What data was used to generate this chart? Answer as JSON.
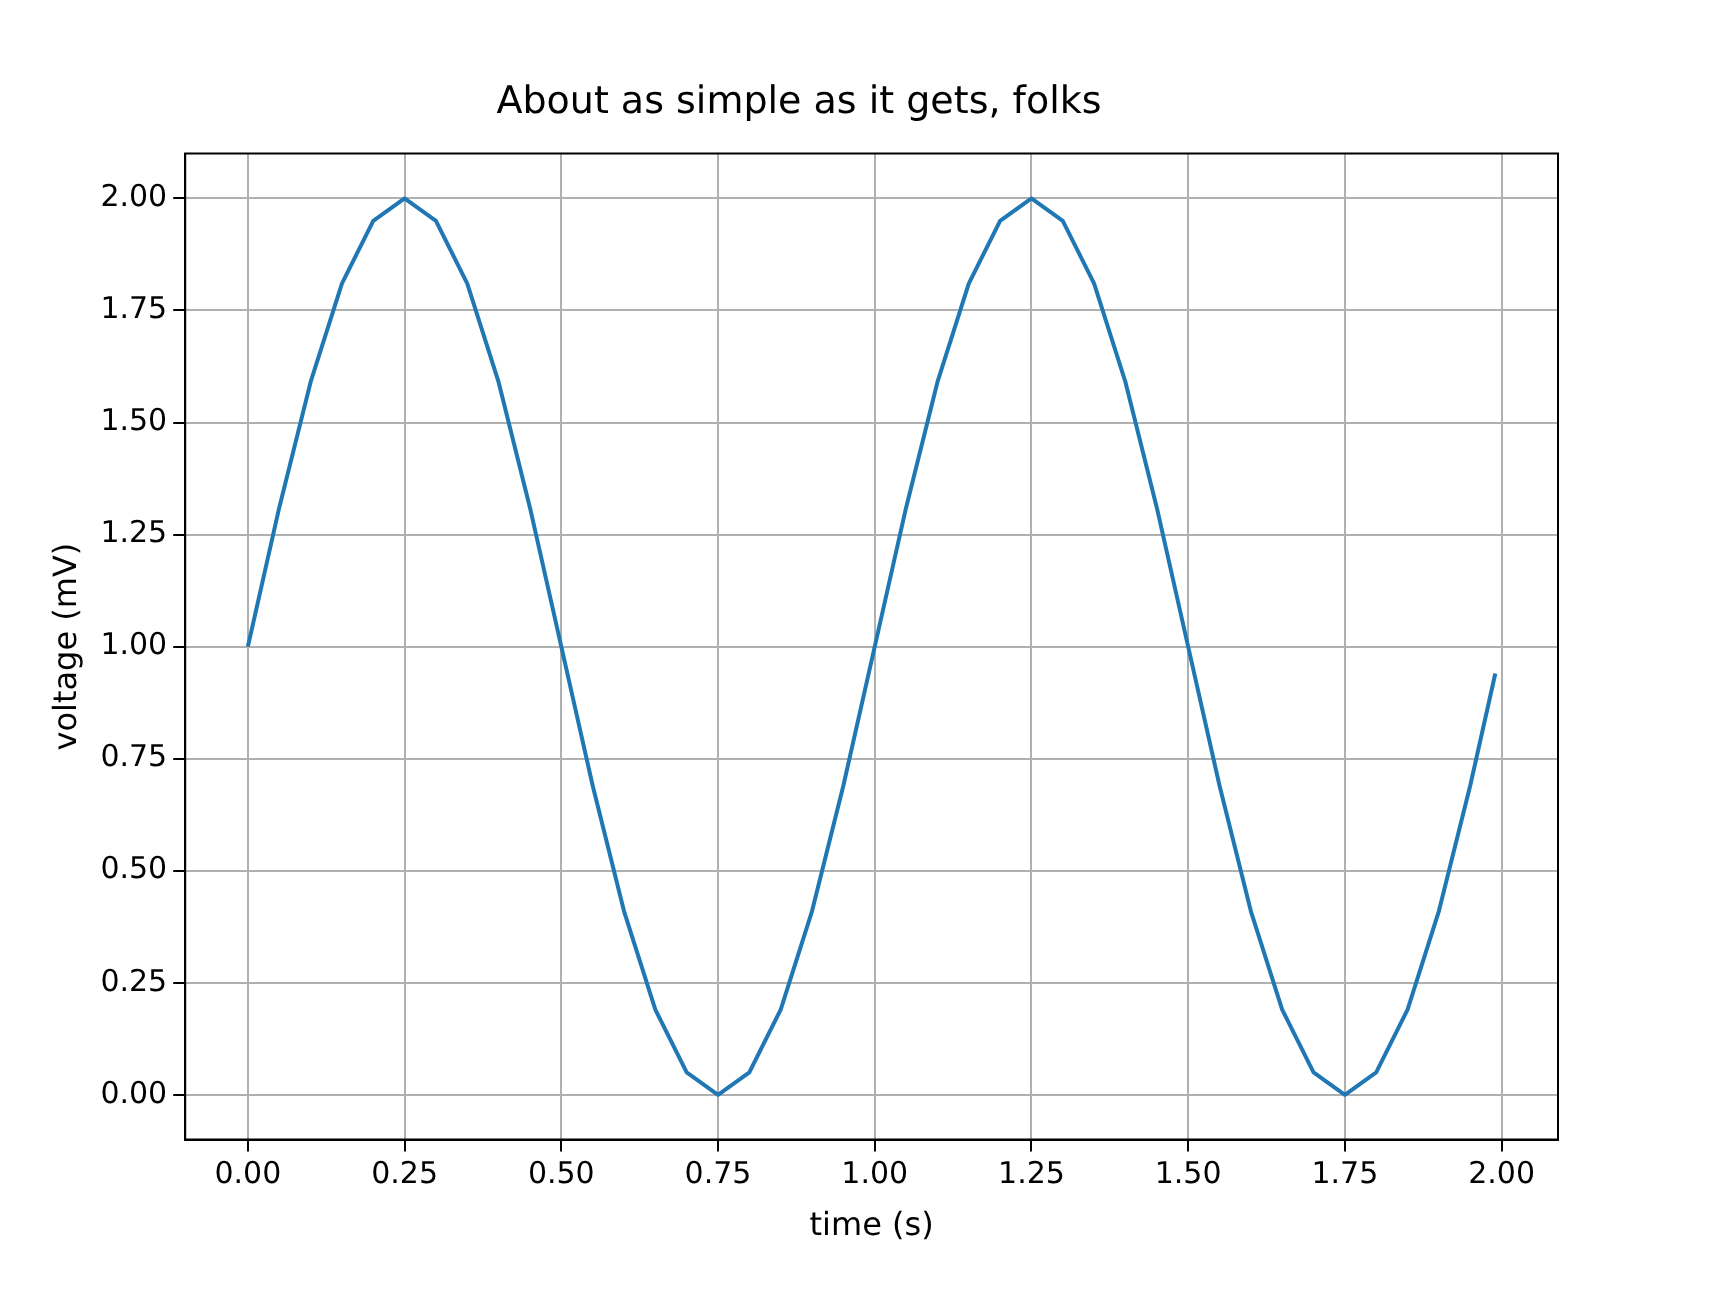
{
  "chart_data": {
    "type": "line",
    "title": "About as simple as it gets, folks",
    "xlabel": "time (s)",
    "ylabel": "voltage (mV)",
    "x": [
      0,
      0.05,
      0.1,
      0.15,
      0.2,
      0.25,
      0.3,
      0.35,
      0.4,
      0.45,
      0.5,
      0.55,
      0.6,
      0.65,
      0.7,
      0.75,
      0.8,
      0.85,
      0.9,
      0.95,
      1.0,
      1.05,
      1.1,
      1.15,
      1.2,
      1.25,
      1.3,
      1.35,
      1.4,
      1.45,
      1.5,
      1.55,
      1.6,
      1.65,
      1.7,
      1.75,
      1.8,
      1.85,
      1.9,
      1.95,
      1.99
    ],
    "series": [
      {
        "color": "#1f77b4",
        "values": [
          1,
          1.31,
          1.59,
          1.81,
          1.95,
          2,
          1.95,
          1.81,
          1.59,
          1.31,
          1,
          0.69,
          0.41,
          0.19,
          0.05,
          0,
          0.05,
          0.19,
          0.41,
          0.69,
          1,
          1.31,
          1.59,
          1.81,
          1.95,
          2,
          1.95,
          1.81,
          1.59,
          1.31,
          1,
          0.69,
          0.41,
          0.19,
          0.05,
          0,
          0.05,
          0.19,
          0.41,
          0.69,
          0.94
        ]
      }
    ],
    "xlim": [
      -0.1,
      2.09
    ],
    "ylim": [
      -0.1,
      2.1
    ],
    "xticks": [
      {
        "value": 0,
        "label": "0.00"
      },
      {
        "value": 0.25,
        "label": "0.25"
      },
      {
        "value": 0.5,
        "label": "0.50"
      },
      {
        "value": 0.75,
        "label": "0.75"
      },
      {
        "value": 1,
        "label": "1.00"
      },
      {
        "value": 1.25,
        "label": "1.25"
      },
      {
        "value": 1.5,
        "label": "1.50"
      },
      {
        "value": 1.75,
        "label": "1.75"
      },
      {
        "value": 2,
        "label": "2.00"
      }
    ],
    "yticks": [
      {
        "value": 0,
        "label": "0.00"
      },
      {
        "value": 0.25,
        "label": "0.25"
      },
      {
        "value": 0.5,
        "label": "0.50"
      },
      {
        "value": 0.75,
        "label": "0.75"
      },
      {
        "value": 1,
        "label": "1.00"
      },
      {
        "value": 1.25,
        "label": "1.25"
      },
      {
        "value": 1.5,
        "label": "1.50"
      },
      {
        "value": 1.75,
        "label": "1.75"
      },
      {
        "value": 2,
        "label": "2.00"
      }
    ],
    "grid": true,
    "marker": "none",
    "line_style": "solid",
    "legend": false
  }
}
